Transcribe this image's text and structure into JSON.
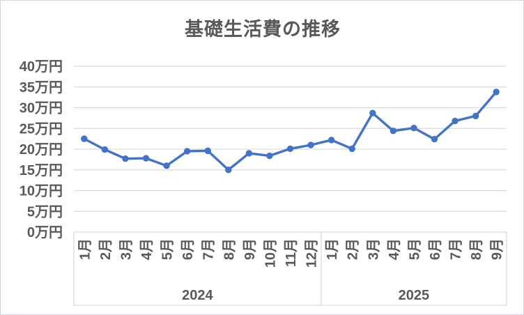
{
  "chart_data": {
    "type": "line",
    "title": "基礎生活費の推移",
    "grid": true,
    "legend": false,
    "y_axis": {
      "unit": "万円",
      "min": 0,
      "max": 40,
      "step": 5,
      "tick_values": [
        0,
        5,
        10,
        15,
        20,
        25,
        30,
        35,
        40
      ],
      "tick_labels": [
        "0万円",
        "5万円",
        "10万円",
        "15万円",
        "20万円",
        "25万円",
        "30万円",
        "35万円",
        "40万円"
      ]
    },
    "x_axis": {
      "groups": [
        {
          "year": "2024",
          "months": [
            "1月",
            "2月",
            "3月",
            "4月",
            "5月",
            "6月",
            "7月",
            "8月",
            "9月",
            "10月",
            "11月",
            "12月"
          ]
        },
        {
          "year": "2025",
          "months": [
            "1月",
            "2月",
            "3月",
            "4月",
            "5月",
            "6月",
            "7月",
            "8月",
            "9月"
          ]
        }
      ]
    },
    "series": [
      {
        "color": "#4472C4",
        "values": [
          22.5,
          19.9,
          17.7,
          17.8,
          16.0,
          19.5,
          19.6,
          15.0,
          19.0,
          18.4,
          20.1,
          21.0,
          22.2,
          20.1,
          28.7,
          24.4,
          25.1,
          22.4,
          26.8,
          28.0,
          33.8
        ]
      }
    ]
  },
  "style": {
    "line_color": "#4472C4",
    "marker_color": "#4472C4",
    "gridline_color": "#D9D9D9",
    "axis_frame_color": "#D9D9D9",
    "text_color": "#595959",
    "background": "#FFFFFF",
    "window_border_color": "#CFD6E2"
  }
}
